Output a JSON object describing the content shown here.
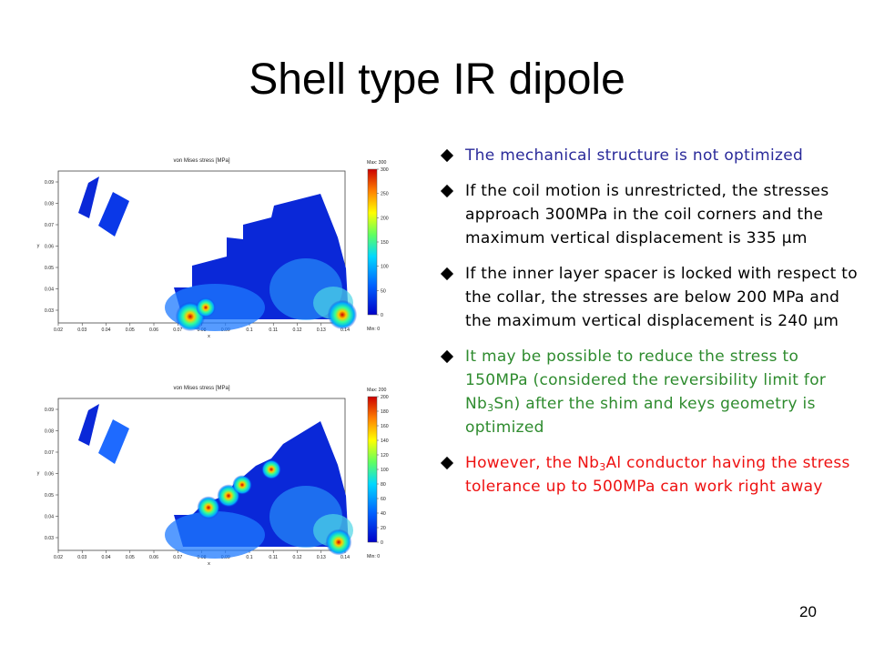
{
  "slide": {
    "title": "Shell type IR dipole",
    "page_number": "20"
  },
  "plots": [
    {
      "title": "von Mises stress [MPa]",
      "xlabel": "x",
      "ylabel": "y",
      "x_ticks": [
        "0.02",
        "0.03",
        "0.04",
        "0.05",
        "0.06",
        "0.07",
        "0.08",
        "0.09",
        "0.1",
        "0.11",
        "0.12",
        "0.13",
        "0.14"
      ],
      "y_ticks": [
        "0.03",
        "0.04",
        "0.05",
        "0.06",
        "0.07",
        "0.08",
        "0.09"
      ],
      "colorbar_max_label": "Max: 300",
      "colorbar_min_label": "Min: 0",
      "colorbar_ticks": [
        "300",
        "250",
        "200",
        "150",
        "100",
        "50",
        "0"
      ],
      "colors": {
        "background": "#0a28d8",
        "hot": "#ff2a00",
        "warm": "#4dd6e6"
      }
    },
    {
      "title": "von Mises stress [MPa]",
      "xlabel": "x",
      "ylabel": "y",
      "x_ticks": [
        "0.02",
        "0.03",
        "0.04",
        "0.05",
        "0.06",
        "0.07",
        "0.08",
        "0.09",
        "0.1",
        "0.11",
        "0.12",
        "0.13",
        "0.14"
      ],
      "y_ticks": [
        "0.03",
        "0.04",
        "0.05",
        "0.06",
        "0.07",
        "0.08",
        "0.09"
      ],
      "colorbar_max_label": "Max: 200",
      "colorbar_min_label": "Min: 0",
      "colorbar_ticks": [
        "200",
        "180",
        "160",
        "140",
        "120",
        "100",
        "80",
        "60",
        "40",
        "20",
        "0"
      ],
      "colors": {
        "background": "#0a28d8",
        "hot": "#ff2a00",
        "warm": "#4dd6e6"
      }
    }
  ],
  "bullets": [
    {
      "segments": [
        {
          "text": "The mechanical structure is not optimized"
        }
      ],
      "color": "#2a2a9a"
    },
    {
      "segments": [
        {
          "text": "If the coil motion is unrestricted, the stresses approach 300MPa in the coil corners and the maximum vertical displacement is 335 μm"
        }
      ],
      "color": "#000000"
    },
    {
      "segments": [
        {
          "text": "If the inner layer spacer is locked with respect to the collar, the stresses are below 200 MPa and the maximum vertical displacement is 240 μm"
        }
      ],
      "color": "#000000"
    },
    {
      "segments": [
        {
          "text": "It may be possible to reduce the stress to 150MPa (considered the reversibility limit for Nb"
        },
        {
          "text": "3",
          "sub": true
        },
        {
          "text": "Sn) after the shim and keys geometry is optimized"
        }
      ],
      "color": "#2e8b2e"
    },
    {
      "segments": [
        {
          "text": "However, the Nb"
        },
        {
          "text": "3",
          "sub": true
        },
        {
          "text": "Al conductor having the stress tolerance up to 500MPa can work right away"
        }
      ],
      "color": "#ee1111"
    }
  ]
}
